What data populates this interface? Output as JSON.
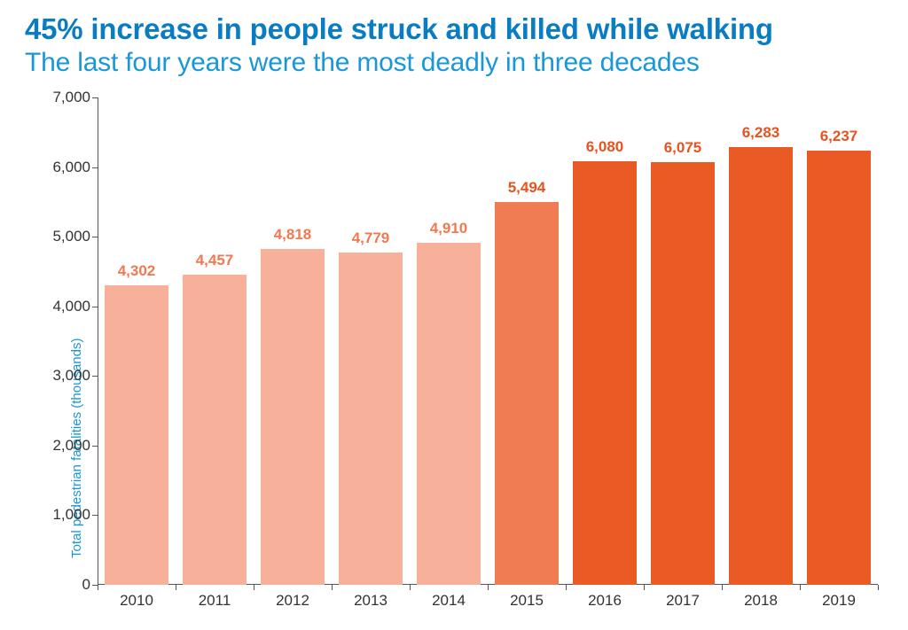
{
  "title": {
    "text": "45% increase in people struck and killed while walking",
    "color": "#0a7cc2",
    "fontsize": 33,
    "weight": 700
  },
  "subtitle": {
    "text": "The last four years were the most deadly in three decades",
    "color": "#1997d6",
    "fontsize": 30,
    "weight": 400
  },
  "chart": {
    "type": "bar",
    "background_color": "#ffffff",
    "axis_color": "#555555",
    "tick_label_color": "#333333",
    "x": {
      "categories": [
        "2010",
        "2011",
        "2012",
        "2013",
        "2014",
        "2015",
        "2016",
        "2017",
        "2018",
        "2019"
      ],
      "label_fontsize": 17
    },
    "y": {
      "min": 0,
      "max": 7000,
      "tick_step": 1000,
      "tick_labels": [
        "0",
        "1,000",
        "2,000",
        "3,000",
        "4,000",
        "5,000",
        "6,000",
        "7,000"
      ],
      "label_fontsize": 17,
      "title": "Total pedestrian fatalities (thousands)",
      "title_color": "#1997d6",
      "title_fontsize": 15
    },
    "bars": {
      "values": [
        4302,
        4457,
        4818,
        4779,
        4910,
        5494,
        6080,
        6075,
        6283,
        6237
      ],
      "value_labels": [
        "4,302",
        "4,457",
        "4,818",
        "4,779",
        "4,910",
        "5,494",
        "6,080",
        "6,075",
        "6,283",
        "6,237"
      ],
      "colors": [
        "#f7b09a",
        "#f7b09a",
        "#f7b09a",
        "#f7b09a",
        "#f7b09a",
        "#f07c52",
        "#ea5a24",
        "#ea5a24",
        "#ea5a24",
        "#ea5a24"
      ],
      "label_colors": [
        "#ef7950",
        "#ef7950",
        "#ef7950",
        "#ef7950",
        "#ef7950",
        "#e9521d",
        "#e9521d",
        "#e9521d",
        "#e9521d",
        "#e9521d"
      ],
      "label_fontsize": 17,
      "bar_width_ratio": 0.82,
      "gap_ratio": 0.18
    }
  }
}
